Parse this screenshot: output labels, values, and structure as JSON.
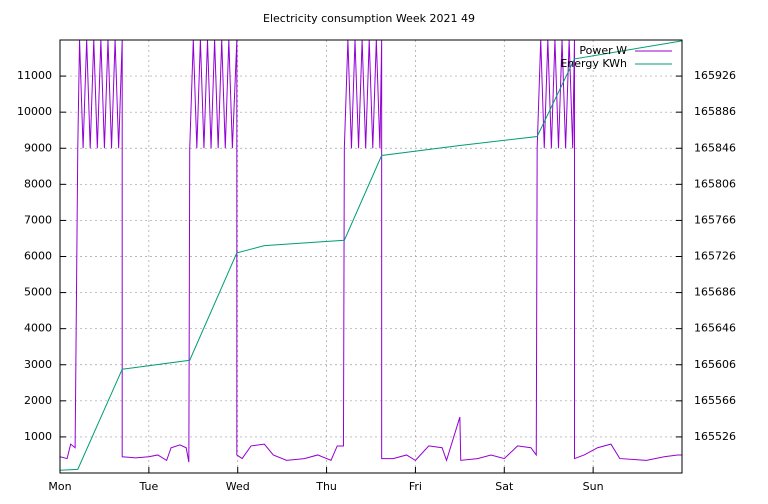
{
  "chart_data": {
    "type": "line",
    "title": "Electricity consumption Week 2021 49",
    "xlim": [
      0,
      7
    ],
    "xticks": [
      {
        "value": 0,
        "label": "Mon"
      },
      {
        "value": 1,
        "label": "Tue"
      },
      {
        "value": 2,
        "label": "Wed"
      },
      {
        "value": 3,
        "label": "Thu"
      },
      {
        "value": 4,
        "label": "Fri"
      },
      {
        "value": 5,
        "label": "Sat"
      },
      {
        "value": 6,
        "label": "Sun"
      }
    ],
    "ylim": [
      0,
      12000
    ],
    "yticks": [
      1000,
      2000,
      3000,
      4000,
      5000,
      6000,
      7000,
      8000,
      9000,
      10000,
      11000
    ],
    "y2lim": [
      165486,
      165966
    ],
    "y2ticks": [
      165526,
      165566,
      165606,
      165646,
      165686,
      165726,
      165766,
      165806,
      165846,
      165886,
      165926
    ],
    "grid": true,
    "legend": "top right",
    "series": [
      {
        "name": "Power W",
        "color": "#9400d3",
        "x": [
          0.0,
          0.08,
          0.12,
          0.17,
          0.2,
          0.22,
          0.26,
          0.3,
          0.34,
          0.38,
          0.42,
          0.46,
          0.5,
          0.54,
          0.58,
          0.62,
          0.66,
          0.7,
          0.7,
          0.85,
          1.0,
          1.1,
          1.2,
          1.25,
          1.35,
          1.42,
          1.45,
          1.46,
          1.5,
          1.54,
          1.58,
          1.62,
          1.66,
          1.7,
          1.74,
          1.78,
          1.82,
          1.86,
          1.9,
          1.94,
          1.99,
          1.99,
          2.05,
          2.15,
          2.3,
          2.4,
          2.55,
          2.75,
          2.9,
          3.05,
          3.12,
          3.19,
          3.2,
          3.24,
          3.28,
          3.32,
          3.36,
          3.4,
          3.44,
          3.48,
          3.52,
          3.56,
          3.6,
          3.62,
          3.62,
          3.75,
          3.9,
          4.0,
          4.15,
          4.3,
          4.35,
          4.5,
          4.51,
          4.7,
          4.85,
          5.0,
          5.15,
          5.3,
          5.36,
          5.37,
          5.41,
          5.45,
          5.49,
          5.53,
          5.57,
          5.61,
          5.65,
          5.69,
          5.73,
          5.77,
          5.79,
          5.79,
          5.9,
          6.05,
          6.2,
          6.3,
          6.6,
          6.8,
          6.95,
          7.0
        ],
        "values": [
          450,
          400,
          800,
          700,
          9000,
          12000,
          9000,
          12000,
          9000,
          12000,
          9000,
          12000,
          9000,
          12000,
          9000,
          12000,
          9000,
          12000,
          450,
          420,
          450,
          500,
          350,
          700,
          780,
          700,
          300,
          9000,
          12000,
          9000,
          12000,
          9000,
          12000,
          9000,
          12000,
          9000,
          12000,
          9000,
          12000,
          9000,
          12000,
          500,
          400,
          750,
          800,
          500,
          350,
          400,
          500,
          350,
          750,
          750,
          9000,
          12000,
          9000,
          12000,
          9000,
          12000,
          9000,
          12000,
          9000,
          12000,
          9000,
          12000,
          400,
          400,
          500,
          350,
          750,
          700,
          350,
          1550,
          350,
          400,
          500,
          400,
          750,
          700,
          500,
          9000,
          12000,
          9000,
          12000,
          9000,
          12000,
          9000,
          12000,
          9000,
          12000,
          9000,
          12000,
          400,
          500,
          700,
          800,
          400,
          350,
          450,
          500,
          500
        ]
      },
      {
        "name": "Energy KWh",
        "color": "#009e73",
        "axis": "y2",
        "x": [
          0.0,
          0.2,
          0.7,
          1.46,
          1.99,
          2.3,
          3.2,
          3.62,
          4.5,
          5.37,
          5.79,
          7.0
        ],
        "values": [
          165489,
          165490,
          165601,
          165611,
          165730,
          165738,
          165744,
          165838,
          165849,
          165859,
          165945,
          165965
        ]
      }
    ]
  }
}
